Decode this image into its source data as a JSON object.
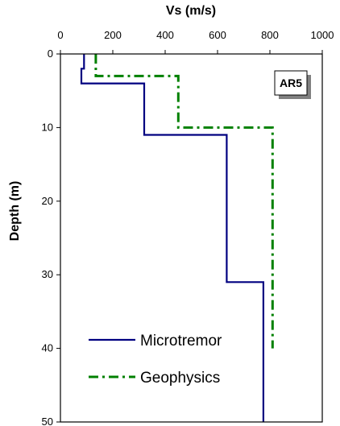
{
  "chart_data": {
    "type": "line",
    "xlabel": "Vs (m/s)",
    "ylabel": "Depth (m)",
    "xlim": [
      0,
      1000
    ],
    "ylim": [
      0,
      50
    ],
    "y_inverted": true,
    "x_axis_position": "top",
    "xticks": [
      0,
      200,
      400,
      600,
      800,
      1000
    ],
    "yticks": [
      0,
      10,
      20,
      30,
      40,
      50
    ],
    "grid": false,
    "legend_position": "bottom-left",
    "annotation": "AR5",
    "series": [
      {
        "name": "Microtremor",
        "color": "#000080",
        "style": "solid",
        "points": [
          [
            90,
            0
          ],
          [
            90,
            2
          ],
          [
            80,
            2
          ],
          [
            80,
            4
          ],
          [
            320,
            4
          ],
          [
            320,
            11
          ],
          [
            635,
            11
          ],
          [
            635,
            31
          ],
          [
            775,
            31
          ],
          [
            775,
            50
          ]
        ]
      },
      {
        "name": "Geophysics",
        "color": "#008000",
        "style": "dash-dot",
        "points": [
          [
            135,
            0
          ],
          [
            135,
            3
          ],
          [
            450,
            3
          ],
          [
            450,
            10
          ],
          [
            810,
            10
          ],
          [
            810,
            40
          ]
        ]
      }
    ]
  }
}
